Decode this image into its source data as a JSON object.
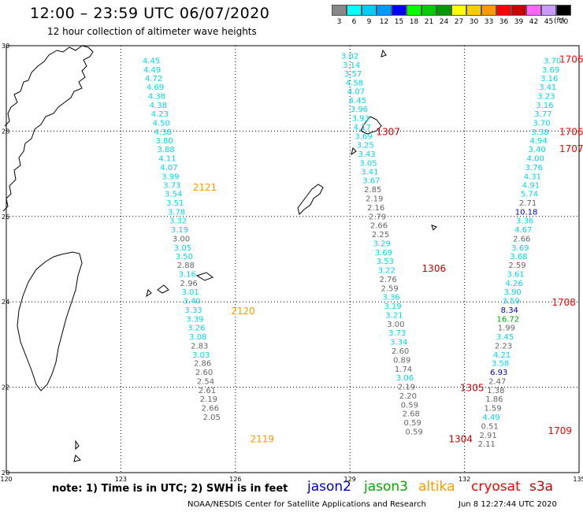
{
  "header": {
    "title": "12:00 – 23:59 UTC 06/07/2020",
    "subtitle": "12 hour collection of altimeter wave heights"
  },
  "color_scale": {
    "labels": [
      "3",
      "6",
      "9",
      "12",
      "15",
      "18",
      "21",
      "24",
      "27",
      "30",
      "33",
      "36",
      "39",
      "42",
      "45",
      "70"
    ],
    "units": "(ft)",
    "colors": [
      "#888888",
      "#00ffff",
      "#00ccff",
      "#0099ff",
      "#0000ff",
      "#00ff00",
      "#00cc00",
      "#009900",
      "#ffff00",
      "#ffcc00",
      "#ff9900",
      "#ff0000",
      "#cc0000",
      "#ff66ff",
      "#cc99ff",
      "#000000"
    ]
  },
  "axes": {
    "lon_ticks": [
      "120",
      "123",
      "126",
      "129",
      "132",
      "135"
    ],
    "lat_ticks": [
      "30",
      "28",
      "26",
      "24",
      "22",
      "20"
    ]
  },
  "satellite_colors": {
    "cyan": "#00d8e8",
    "gray": "#666666",
    "jason2": "#0000cc",
    "jason3": "#00aa00",
    "altika": "#ff9900",
    "cryosat": "#ff0000",
    "s3a": "#cc0000",
    "dark": "#880000"
  },
  "tracks": [
    {
      "lon": 123.8,
      "lat": 29.66,
      "v": "4.45",
      "c": "cyan"
    },
    {
      "lon": 123.82,
      "lat": 29.45,
      "v": "4.49",
      "c": "cyan"
    },
    {
      "lon": 123.86,
      "lat": 29.24,
      "v": "4.72",
      "c": "cyan"
    },
    {
      "lon": 123.9,
      "lat": 29.04,
      "v": "4.69",
      "c": "cyan"
    },
    {
      "lon": 123.94,
      "lat": 28.83,
      "v": "4.38",
      "c": "cyan"
    },
    {
      "lon": 123.98,
      "lat": 28.62,
      "v": "4.38",
      "c": "cyan"
    },
    {
      "lon": 124.02,
      "lat": 28.41,
      "v": "4.23",
      "c": "cyan"
    },
    {
      "lon": 124.06,
      "lat": 28.2,
      "v": "4.50",
      "c": "cyan"
    },
    {
      "lon": 124.1,
      "lat": 27.99,
      "v": "4.38",
      "c": "cyan"
    },
    {
      "lon": 124.14,
      "lat": 27.79,
      "v": "3.80",
      "c": "cyan"
    },
    {
      "lon": 124.18,
      "lat": 27.58,
      "v": "3.88",
      "c": "cyan"
    },
    {
      "lon": 124.22,
      "lat": 27.37,
      "v": "4.11",
      "c": "cyan"
    },
    {
      "lon": 124.26,
      "lat": 27.16,
      "v": "4.07",
      "c": "cyan"
    },
    {
      "lon": 124.3,
      "lat": 26.95,
      "v": "3.99",
      "c": "cyan"
    },
    {
      "lon": 124.34,
      "lat": 26.74,
      "v": "3.73",
      "c": "cyan"
    },
    {
      "lon": 124.38,
      "lat": 26.54,
      "v": "3.54",
      "c": "cyan"
    },
    {
      "lon": 124.42,
      "lat": 26.33,
      "v": "3.51",
      "c": "cyan"
    },
    {
      "lon": 124.46,
      "lat": 26.12,
      "v": "3.78",
      "c": "cyan"
    },
    {
      "lon": 124.5,
      "lat": 25.91,
      "v": "3.32",
      "c": "cyan"
    },
    {
      "lon": 124.54,
      "lat": 25.7,
      "v": "3.19",
      "c": "cyan"
    },
    {
      "lon": 124.58,
      "lat": 25.49,
      "v": "3.00",
      "c": "gray"
    },
    {
      "lon": 124.62,
      "lat": 25.28,
      "v": "3.05",
      "c": "cyan"
    },
    {
      "lon": 124.66,
      "lat": 25.07,
      "v": "3.50",
      "c": "cyan"
    },
    {
      "lon": 124.7,
      "lat": 24.87,
      "v": "2.88",
      "c": "gray"
    },
    {
      "lon": 124.74,
      "lat": 24.66,
      "v": "3.16",
      "c": "cyan"
    },
    {
      "lon": 124.78,
      "lat": 24.45,
      "v": "2.96",
      "c": "gray"
    },
    {
      "lon": 124.82,
      "lat": 24.24,
      "v": "3.01",
      "c": "cyan"
    },
    {
      "lon": 124.86,
      "lat": 24.03,
      "v": "3.40",
      "c": "cyan"
    },
    {
      "lon": 124.9,
      "lat": 23.82,
      "v": "3.33",
      "c": "cyan"
    },
    {
      "lon": 124.94,
      "lat": 23.61,
      "v": "3.39",
      "c": "cyan"
    },
    {
      "lon": 124.98,
      "lat": 23.4,
      "v": "3.26",
      "c": "cyan"
    },
    {
      "lon": 125.02,
      "lat": 23.19,
      "v": "3.08",
      "c": "cyan"
    },
    {
      "lon": 125.06,
      "lat": 22.98,
      "v": "2.83",
      "c": "gray"
    },
    {
      "lon": 125.1,
      "lat": 22.77,
      "v": "3.03",
      "c": "cyan"
    },
    {
      "lon": 125.14,
      "lat": 22.57,
      "v": "2.86",
      "c": "gray"
    },
    {
      "lon": 125.18,
      "lat": 22.36,
      "v": "2.60",
      "c": "gray"
    },
    {
      "lon": 125.22,
      "lat": 22.15,
      "v": "2.54",
      "c": "gray"
    },
    {
      "lon": 125.26,
      "lat": 21.94,
      "v": "2.61",
      "c": "gray"
    },
    {
      "lon": 125.3,
      "lat": 21.73,
      "v": "2.19",
      "c": "gray"
    },
    {
      "lon": 125.34,
      "lat": 21.52,
      "v": "2.66",
      "c": "gray"
    },
    {
      "lon": 125.38,
      "lat": 21.31,
      "v": "2.05",
      "c": "gray"
    },
    {
      "lon": 129.0,
      "lat": 29.77,
      "v": "3.02",
      "c": "cyan"
    },
    {
      "lon": 129.04,
      "lat": 29.56,
      "v": "3.14",
      "c": "cyan"
    },
    {
      "lon": 129.08,
      "lat": 29.35,
      "v": "3.57",
      "c": "cyan"
    },
    {
      "lon": 129.12,
      "lat": 29.14,
      "v": "4.58",
      "c": "cyan"
    },
    {
      "lon": 129.16,
      "lat": 28.94,
      "v": "4.07",
      "c": "cyan"
    },
    {
      "lon": 129.2,
      "lat": 28.73,
      "v": "4.45",
      "c": "cyan"
    },
    {
      "lon": 129.24,
      "lat": 28.52,
      "v": "3.96",
      "c": "cyan"
    },
    {
      "lon": 129.28,
      "lat": 28.31,
      "v": "3.93",
      "c": "cyan"
    },
    {
      "lon": 129.32,
      "lat": 28.1,
      "v": "4.17",
      "c": "cyan"
    },
    {
      "lon": 129.36,
      "lat": 27.89,
      "v": "3.69",
      "c": "cyan"
    },
    {
      "lon": 129.4,
      "lat": 27.68,
      "v": "3.25",
      "c": "cyan"
    },
    {
      "lon": 129.44,
      "lat": 27.47,
      "v": "3.43",
      "c": "cyan"
    },
    {
      "lon": 129.48,
      "lat": 27.26,
      "v": "3.05",
      "c": "cyan"
    },
    {
      "lon": 129.52,
      "lat": 27.06,
      "v": "3.41",
      "c": "cyan"
    },
    {
      "lon": 129.56,
      "lat": 26.85,
      "v": "3.67",
      "c": "cyan"
    },
    {
      "lon": 129.6,
      "lat": 26.64,
      "v": "2.85",
      "c": "gray"
    },
    {
      "lon": 129.64,
      "lat": 26.43,
      "v": "2.19",
      "c": "gray"
    },
    {
      "lon": 129.68,
      "lat": 26.22,
      "v": "2.16",
      "c": "gray"
    },
    {
      "lon": 129.72,
      "lat": 26.01,
      "v": "2.79",
      "c": "gray"
    },
    {
      "lon": 129.76,
      "lat": 25.8,
      "v": "2.66",
      "c": "gray"
    },
    {
      "lon": 129.8,
      "lat": 25.59,
      "v": "2.25",
      "c": "gray"
    },
    {
      "lon": 129.84,
      "lat": 25.38,
      "v": "3.29",
      "c": "cyan"
    },
    {
      "lon": 129.88,
      "lat": 25.17,
      "v": "3.69",
      "c": "cyan"
    },
    {
      "lon": 129.92,
      "lat": 24.96,
      "v": "3.53",
      "c": "cyan"
    },
    {
      "lon": 129.96,
      "lat": 24.75,
      "v": "3.22",
      "c": "cyan"
    },
    {
      "lon": 130.0,
      "lat": 24.54,
      "v": "2.76",
      "c": "gray"
    },
    {
      "lon": 130.04,
      "lat": 24.33,
      "v": "2.59",
      "c": "gray"
    },
    {
      "lon": 130.08,
      "lat": 24.12,
      "v": "3.36",
      "c": "cyan"
    },
    {
      "lon": 130.12,
      "lat": 23.91,
      "v": "3.19",
      "c": "cyan"
    },
    {
      "lon": 130.16,
      "lat": 23.7,
      "v": "3.21",
      "c": "cyan"
    },
    {
      "lon": 130.2,
      "lat": 23.49,
      "v": "3.00",
      "c": "gray"
    },
    {
      "lon": 130.24,
      "lat": 23.28,
      "v": "3.73",
      "c": "cyan"
    },
    {
      "lon": 130.28,
      "lat": 23.07,
      "v": "3.34",
      "c": "cyan"
    },
    {
      "lon": 130.32,
      "lat": 22.86,
      "v": "2.60",
      "c": "gray"
    },
    {
      "lon": 130.36,
      "lat": 22.65,
      "v": "0.89",
      "c": "gray"
    },
    {
      "lon": 130.4,
      "lat": 22.44,
      "v": "1.74",
      "c": "gray"
    },
    {
      "lon": 130.44,
      "lat": 22.23,
      "v": "3.06",
      "c": "cyan"
    },
    {
      "lon": 130.48,
      "lat": 22.02,
      "v": "2.19",
      "c": "gray"
    },
    {
      "lon": 130.52,
      "lat": 21.81,
      "v": "2.20",
      "c": "gray"
    },
    {
      "lon": 130.56,
      "lat": 21.6,
      "v": "0.59",
      "c": "gray"
    },
    {
      "lon": 130.6,
      "lat": 21.39,
      "v": "2.68",
      "c": "gray"
    },
    {
      "lon": 130.64,
      "lat": 21.18,
      "v": "0.59",
      "c": "gray"
    },
    {
      "lon": 130.68,
      "lat": 20.97,
      "v": "0.59",
      "c": "gray"
    },
    {
      "lon": 134.3,
      "lat": 29.66,
      "v": "3.70",
      "c": "cyan"
    },
    {
      "lon": 134.26,
      "lat": 29.45,
      "v": "3.69",
      "c": "cyan"
    },
    {
      "lon": 134.22,
      "lat": 29.24,
      "v": "3.16",
      "c": "cyan"
    },
    {
      "lon": 134.18,
      "lat": 29.04,
      "v": "3.41",
      "c": "cyan"
    },
    {
      "lon": 134.14,
      "lat": 28.83,
      "v": "3.23",
      "c": "cyan"
    },
    {
      "lon": 134.1,
      "lat": 28.62,
      "v": "3.16",
      "c": "cyan"
    },
    {
      "lon": 134.06,
      "lat": 28.41,
      "v": "3.77",
      "c": "cyan"
    },
    {
      "lon": 134.02,
      "lat": 28.2,
      "v": "3.70",
      "c": "cyan"
    },
    {
      "lon": 133.98,
      "lat": 27.99,
      "v": "3.38",
      "c": "cyan"
    },
    {
      "lon": 133.94,
      "lat": 27.79,
      "v": "4.94",
      "c": "cyan"
    },
    {
      "lon": 133.9,
      "lat": 27.58,
      "v": "3.40",
      "c": "cyan"
    },
    {
      "lon": 133.86,
      "lat": 27.37,
      "v": "4.00",
      "c": "cyan"
    },
    {
      "lon": 133.82,
      "lat": 27.16,
      "v": "3.76",
      "c": "cyan"
    },
    {
      "lon": 133.78,
      "lat": 26.95,
      "v": "4.31",
      "c": "cyan"
    },
    {
      "lon": 133.74,
      "lat": 26.74,
      "v": "4.91",
      "c": "cyan"
    },
    {
      "lon": 133.7,
      "lat": 26.54,
      "v": "5.74",
      "c": "cyan"
    },
    {
      "lon": 133.66,
      "lat": 26.33,
      "v": "2.71",
      "c": "gray"
    },
    {
      "lon": 133.62,
      "lat": 26.12,
      "v": "10.18",
      "c": "jason2"
    },
    {
      "lon": 133.58,
      "lat": 25.91,
      "v": "3.36",
      "c": "cyan"
    },
    {
      "lon": 133.54,
      "lat": 25.7,
      "v": "4.67",
      "c": "cyan"
    },
    {
      "lon": 133.5,
      "lat": 25.49,
      "v": "2.66",
      "c": "gray"
    },
    {
      "lon": 133.46,
      "lat": 25.28,
      "v": "3.69",
      "c": "cyan"
    },
    {
      "lon": 133.42,
      "lat": 25.07,
      "v": "3.68",
      "c": "cyan"
    },
    {
      "lon": 133.38,
      "lat": 24.87,
      "v": "2.59",
      "c": "gray"
    },
    {
      "lon": 133.34,
      "lat": 24.66,
      "v": "3.61",
      "c": "cyan"
    },
    {
      "lon": 133.3,
      "lat": 24.45,
      "v": "4.26",
      "c": "cyan"
    },
    {
      "lon": 133.26,
      "lat": 24.24,
      "v": "3.90",
      "c": "cyan"
    },
    {
      "lon": 133.22,
      "lat": 24.03,
      "v": "3.59",
      "c": "cyan"
    },
    {
      "lon": 133.18,
      "lat": 23.82,
      "v": "8.34",
      "c": "jason2"
    },
    {
      "lon": 133.14,
      "lat": 23.61,
      "v": "16.72",
      "c": "jason3"
    },
    {
      "lon": 133.1,
      "lat": 23.4,
      "v": "1.99",
      "c": "gray"
    },
    {
      "lon": 133.06,
      "lat": 23.19,
      "v": "3.45",
      "c": "cyan"
    },
    {
      "lon": 133.02,
      "lat": 22.98,
      "v": "2.23",
      "c": "gray"
    },
    {
      "lon": 132.98,
      "lat": 22.77,
      "v": "4.21",
      "c": "cyan"
    },
    {
      "lon": 132.94,
      "lat": 22.57,
      "v": "3.58",
      "c": "cyan"
    },
    {
      "lon": 132.9,
      "lat": 22.36,
      "v": "6.93",
      "c": "jason2"
    },
    {
      "lon": 132.86,
      "lat": 22.15,
      "v": "2.47",
      "c": "gray"
    },
    {
      "lon": 132.82,
      "lat": 21.94,
      "v": "1.38",
      "c": "gray"
    },
    {
      "lon": 132.78,
      "lat": 21.73,
      "v": "1.86",
      "c": "gray"
    },
    {
      "lon": 132.74,
      "lat": 21.52,
      "v": "1.59",
      "c": "gray"
    },
    {
      "lon": 132.7,
      "lat": 21.31,
      "v": "4.49",
      "c": "cyan"
    },
    {
      "lon": 132.66,
      "lat": 21.1,
      "v": "0.51",
      "c": "gray"
    },
    {
      "lon": 132.62,
      "lat": 20.89,
      "v": "2.91",
      "c": "gray"
    },
    {
      "lon": 132.58,
      "lat": 20.68,
      "v": "2.11",
      "c": "gray"
    }
  ],
  "time_labels": [
    {
      "lon": 134.8,
      "lat": 29.7,
      "v": "1706",
      "c": "cryosat"
    },
    {
      "lon": 134.8,
      "lat": 28.0,
      "v": "1706",
      "c": "cryosat"
    },
    {
      "lon": 134.8,
      "lat": 27.6,
      "v": "1707",
      "c": "cryosat"
    },
    {
      "lon": 134.6,
      "lat": 24.0,
      "v": "1708",
      "c": "cryosat"
    },
    {
      "lon": 134.5,
      "lat": 21.0,
      "v": "1709",
      "c": "cryosat"
    },
    {
      "lon": 125.2,
      "lat": 26.7,
      "v": "2121",
      "c": "altika"
    },
    {
      "lon": 126.2,
      "lat": 23.8,
      "v": "2120",
      "c": "altika"
    },
    {
      "lon": 126.7,
      "lat": 20.8,
      "v": "2119",
      "c": "altika"
    },
    {
      "lon": 130.0,
      "lat": 28.0,
      "v": "1307",
      "c": "s3a"
    },
    {
      "lon": 131.2,
      "lat": 24.8,
      "v": "1306",
      "c": "s3a"
    },
    {
      "lon": 132.2,
      "lat": 22.0,
      "v": "1305",
      "c": "s3a"
    },
    {
      "lon": 131.9,
      "lat": 20.8,
      "v": "1304",
      "c": "s3a"
    }
  ],
  "footer": {
    "note": "note: 1) Time is in UTC; 2) SWH is in feet",
    "satellites": [
      {
        "name": "jason2",
        "c": "jason2"
      },
      {
        "name": "jason3",
        "c": "jason3"
      },
      {
        "name": "altika",
        "c": "altika"
      },
      {
        "name": "cryosat",
        "c": "cryosat"
      },
      {
        "name": "s3a",
        "c": "s3a"
      }
    ],
    "credit": "NOAA/NESDIS Center for Satellite Applications and Research",
    "timestamp": "Jun  8 12:27:44 UTC 2020"
  }
}
